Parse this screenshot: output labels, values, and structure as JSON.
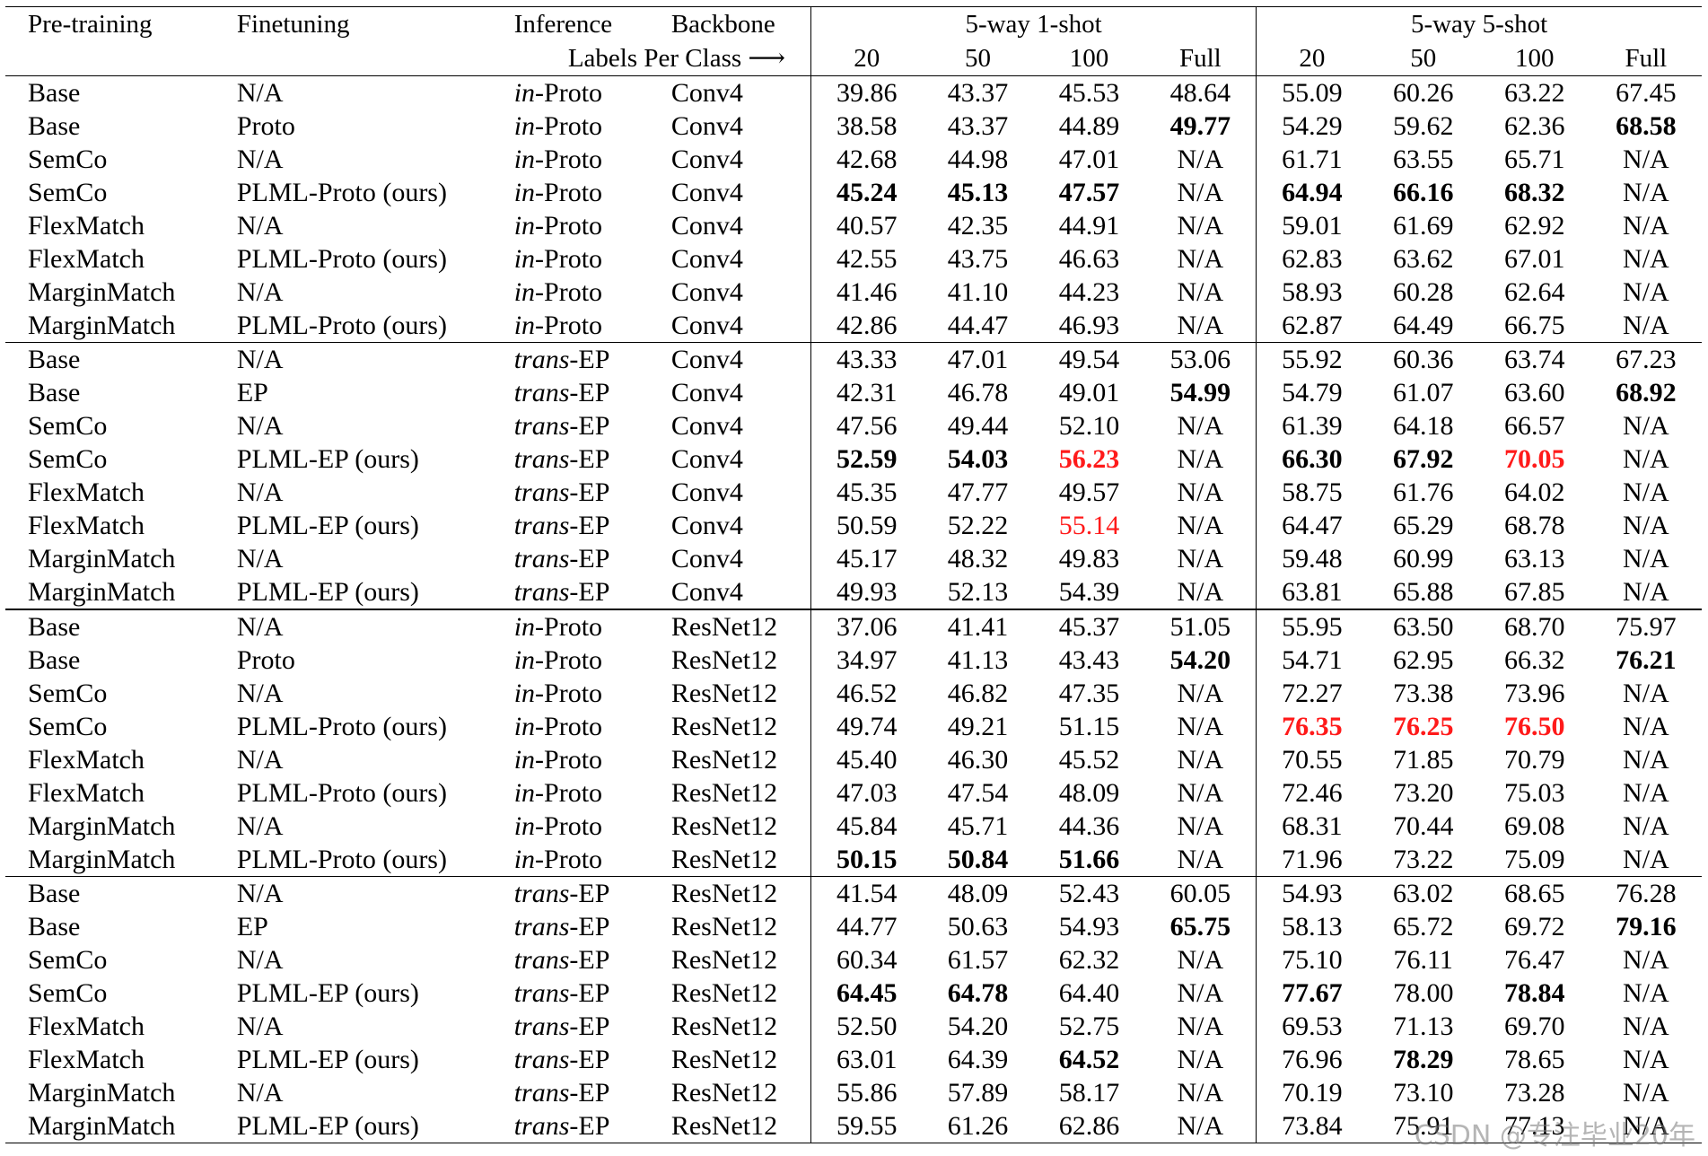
{
  "header": {
    "pretraining": "Pre-training",
    "finetuning": "Finetuning",
    "inference": "Inference",
    "backbone": "Backbone",
    "group_1shot": "5-way 1-shot",
    "group_5shot": "5-way 5-shot",
    "labels_per_class": "Labels Per Class ⟶",
    "cols": [
      "20",
      "50",
      "100",
      "Full"
    ]
  },
  "rows": [
    {
      "pre": "Base",
      "fine": "N/A",
      "inf_pre": "in",
      "inf_suf": "-Proto",
      "bb": "Conv4",
      "v": [
        "39.86",
        "43.37",
        "45.53",
        "48.64",
        "55.09",
        "60.26",
        "63.22",
        "67.45"
      ]
    },
    {
      "pre": "Base",
      "fine": "Proto",
      "inf_pre": "in",
      "inf_suf": "-Proto",
      "bb": "Conv4",
      "v": [
        "38.58",
        "43.37",
        "44.89",
        "49.77",
        "54.29",
        "59.62",
        "62.36",
        "68.58"
      ]
    },
    {
      "pre": "SemCo",
      "fine": "N/A",
      "inf_pre": "in",
      "inf_suf": "-Proto",
      "bb": "Conv4",
      "v": [
        "42.68",
        "44.98",
        "47.01",
        "N/A",
        "61.71",
        "63.55",
        "65.71",
        "N/A"
      ]
    },
    {
      "pre": "SemCo",
      "fine": "PLML-Proto (ours)",
      "inf_pre": "in",
      "inf_suf": "-Proto",
      "bb": "Conv4",
      "v": [
        "45.24",
        "45.13",
        "47.57",
        "N/A",
        "64.94",
        "66.16",
        "68.32",
        "N/A"
      ]
    },
    {
      "pre": "FlexMatch",
      "fine": "N/A",
      "inf_pre": "in",
      "inf_suf": "-Proto",
      "bb": "Conv4",
      "v": [
        "40.57",
        "42.35",
        "44.91",
        "N/A",
        "59.01",
        "61.69",
        "62.92",
        "N/A"
      ]
    },
    {
      "pre": "FlexMatch",
      "fine": "PLML-Proto (ours)",
      "inf_pre": "in",
      "inf_suf": "-Proto",
      "bb": "Conv4",
      "v": [
        "42.55",
        "43.75",
        "46.63",
        "N/A",
        "62.83",
        "63.62",
        "67.01",
        "N/A"
      ]
    },
    {
      "pre": "MarginMatch",
      "fine": "N/A",
      "inf_pre": "in",
      "inf_suf": "-Proto",
      "bb": "Conv4",
      "v": [
        "41.46",
        "41.10",
        "44.23",
        "N/A",
        "58.93",
        "60.28",
        "62.64",
        "N/A"
      ]
    },
    {
      "pre": "MarginMatch",
      "fine": "PLML-Proto (ours)",
      "inf_pre": "in",
      "inf_suf": "-Proto",
      "bb": "Conv4",
      "v": [
        "42.86",
        "44.47",
        "46.93",
        "N/A",
        "62.87",
        "64.49",
        "66.75",
        "N/A"
      ]
    },
    {
      "pre": "Base",
      "fine": "N/A",
      "inf_pre": "trans",
      "inf_suf": "-EP",
      "bb": "Conv4",
      "v": [
        "43.33",
        "47.01",
        "49.54",
        "53.06",
        "55.92",
        "60.36",
        "63.74",
        "67.23"
      ]
    },
    {
      "pre": "Base",
      "fine": "EP",
      "inf_pre": "trans",
      "inf_suf": "-EP",
      "bb": "Conv4",
      "v": [
        "42.31",
        "46.78",
        "49.01",
        "54.99",
        "54.79",
        "61.07",
        "63.60",
        "68.92"
      ]
    },
    {
      "pre": "SemCo",
      "fine": "N/A",
      "inf_pre": "trans",
      "inf_suf": "-EP",
      "bb": "Conv4",
      "v": [
        "47.56",
        "49.44",
        "52.10",
        "N/A",
        "61.39",
        "64.18",
        "66.57",
        "N/A"
      ]
    },
    {
      "pre": "SemCo",
      "fine": "PLML-EP (ours)",
      "inf_pre": "trans",
      "inf_suf": "-EP",
      "bb": "Conv4",
      "v": [
        "52.59",
        "54.03",
        "56.23",
        "N/A",
        "66.30",
        "67.92",
        "70.05",
        "N/A"
      ]
    },
    {
      "pre": "FlexMatch",
      "fine": "N/A",
      "inf_pre": "trans",
      "inf_suf": "-EP",
      "bb": "Conv4",
      "v": [
        "45.35",
        "47.77",
        "49.57",
        "N/A",
        "58.75",
        "61.76",
        "64.02",
        "N/A"
      ]
    },
    {
      "pre": "FlexMatch",
      "fine": "PLML-EP (ours)",
      "inf_pre": "trans",
      "inf_suf": "-EP",
      "bb": "Conv4",
      "v": [
        "50.59",
        "52.22",
        "55.14",
        "N/A",
        "64.47",
        "65.29",
        "68.78",
        "N/A"
      ]
    },
    {
      "pre": "MarginMatch",
      "fine": "N/A",
      "inf_pre": "trans",
      "inf_suf": "-EP",
      "bb": "Conv4",
      "v": [
        "45.17",
        "48.32",
        "49.83",
        "N/A",
        "59.48",
        "60.99",
        "63.13",
        "N/A"
      ]
    },
    {
      "pre": "MarginMatch",
      "fine": "PLML-EP (ours)",
      "inf_pre": "trans",
      "inf_suf": "-EP",
      "bb": "Conv4",
      "v": [
        "49.93",
        "52.13",
        "54.39",
        "N/A",
        "63.81",
        "65.88",
        "67.85",
        "N/A"
      ]
    },
    {
      "pre": "Base",
      "fine": "N/A",
      "inf_pre": "in",
      "inf_suf": "-Proto",
      "bb": "ResNet12",
      "v": [
        "37.06",
        "41.41",
        "45.37",
        "51.05",
        "55.95",
        "63.50",
        "68.70",
        "75.97"
      ]
    },
    {
      "pre": "Base",
      "fine": "Proto",
      "inf_pre": "in",
      "inf_suf": "-Proto",
      "bb": "ResNet12",
      "v": [
        "34.97",
        "41.13",
        "43.43",
        "54.20",
        "54.71",
        "62.95",
        "66.32",
        "76.21"
      ]
    },
    {
      "pre": "SemCo",
      "fine": "N/A",
      "inf_pre": "in",
      "inf_suf": "-Proto",
      "bb": "ResNet12",
      "v": [
        "46.52",
        "46.82",
        "47.35",
        "N/A",
        "72.27",
        "73.38",
        "73.96",
        "N/A"
      ]
    },
    {
      "pre": "SemCo",
      "fine": "PLML-Proto (ours)",
      "inf_pre": "in",
      "inf_suf": "-Proto",
      "bb": "ResNet12",
      "v": [
        "49.74",
        "49.21",
        "51.15",
        "N/A",
        "76.35",
        "76.25",
        "76.50",
        "N/A"
      ]
    },
    {
      "pre": "FlexMatch",
      "fine": "N/A",
      "inf_pre": "in",
      "inf_suf": "-Proto",
      "bb": "ResNet12",
      "v": [
        "45.40",
        "46.30",
        "45.52",
        "N/A",
        "70.55",
        "71.85",
        "70.79",
        "N/A"
      ]
    },
    {
      "pre": "FlexMatch",
      "fine": "PLML-Proto (ours)",
      "inf_pre": "in",
      "inf_suf": "-Proto",
      "bb": "ResNet12",
      "v": [
        "47.03",
        "47.54",
        "48.09",
        "N/A",
        "72.46",
        "73.20",
        "75.03",
        "N/A"
      ]
    },
    {
      "pre": "MarginMatch",
      "fine": "N/A",
      "inf_pre": "in",
      "inf_suf": "-Proto",
      "bb": "ResNet12",
      "v": [
        "45.84",
        "45.71",
        "44.36",
        "N/A",
        "68.31",
        "70.44",
        "69.08",
        "N/A"
      ]
    },
    {
      "pre": "MarginMatch",
      "fine": "PLML-Proto (ours)",
      "inf_pre": "in",
      "inf_suf": "-Proto",
      "bb": "ResNet12",
      "v": [
        "50.15",
        "50.84",
        "51.66",
        "N/A",
        "71.96",
        "73.22",
        "75.09",
        "N/A"
      ]
    },
    {
      "pre": "Base",
      "fine": "N/A",
      "inf_pre": "trans",
      "inf_suf": "-EP",
      "bb": "ResNet12",
      "v": [
        "41.54",
        "48.09",
        "52.43",
        "60.05",
        "54.93",
        "63.02",
        "68.65",
        "76.28"
      ]
    },
    {
      "pre": "Base",
      "fine": "EP",
      "inf_pre": "trans",
      "inf_suf": "-EP",
      "bb": "ResNet12",
      "v": [
        "44.77",
        "50.63",
        "54.93",
        "65.75",
        "58.13",
        "65.72",
        "69.72",
        "79.16"
      ]
    },
    {
      "pre": "SemCo",
      "fine": "N/A",
      "inf_pre": "trans",
      "inf_suf": "-EP",
      "bb": "ResNet12",
      "v": [
        "60.34",
        "61.57",
        "62.32",
        "N/A",
        "75.10",
        "76.11",
        "76.47",
        "N/A"
      ]
    },
    {
      "pre": "SemCo",
      "fine": "PLML-EP (ours)",
      "inf_pre": "trans",
      "inf_suf": "-EP",
      "bb": "ResNet12",
      "v": [
        "64.45",
        "64.78",
        "64.40",
        "N/A",
        "77.67",
        "78.00",
        "78.84",
        "N/A"
      ]
    },
    {
      "pre": "FlexMatch",
      "fine": "N/A",
      "inf_pre": "trans",
      "inf_suf": "-EP",
      "bb": "ResNet12",
      "v": [
        "52.50",
        "54.20",
        "52.75",
        "N/A",
        "69.53",
        "71.13",
        "69.70",
        "N/A"
      ]
    },
    {
      "pre": "FlexMatch",
      "fine": "PLML-EP (ours)",
      "inf_pre": "trans",
      "inf_suf": "-EP",
      "bb": "ResNet12",
      "v": [
        "63.01",
        "64.39",
        "64.52",
        "N/A",
        "76.96",
        "78.29",
        "78.65",
        "N/A"
      ]
    },
    {
      "pre": "MarginMatch",
      "fine": "N/A",
      "inf_pre": "trans",
      "inf_suf": "-EP",
      "bb": "ResNet12",
      "v": [
        "55.86",
        "57.89",
        "58.17",
        "N/A",
        "70.19",
        "73.10",
        "73.28",
        "N/A"
      ]
    },
    {
      "pre": "MarginMatch",
      "fine": "PLML-EP (ours)",
      "inf_pre": "trans",
      "inf_suf": "-EP",
      "bb": "ResNet12",
      "v": [
        "59.55",
        "61.26",
        "62.86",
        "N/A",
        "73.84",
        "75.91",
        "77.13",
        "N/A"
      ]
    }
  ],
  "bold_cells": [
    [
      1,
      3
    ],
    [
      1,
      7
    ],
    [
      3,
      0
    ],
    [
      3,
      1
    ],
    [
      3,
      2
    ],
    [
      3,
      4
    ],
    [
      3,
      5
    ],
    [
      3,
      6
    ],
    [
      9,
      3
    ],
    [
      9,
      7
    ],
    [
      11,
      0
    ],
    [
      11,
      1
    ],
    [
      11,
      4
    ],
    [
      11,
      5
    ],
    [
      17,
      3
    ],
    [
      17,
      7
    ],
    [
      23,
      0
    ],
    [
      23,
      1
    ],
    [
      23,
      2
    ],
    [
      25,
      3
    ],
    [
      25,
      7
    ],
    [
      27,
      0
    ],
    [
      27,
      1
    ],
    [
      27,
      4
    ],
    [
      27,
      6
    ],
    [
      29,
      2
    ],
    [
      29,
      5
    ]
  ],
  "red_bold_cells": [
    [
      11,
      2
    ],
    [
      11,
      6
    ],
    [
      19,
      4
    ],
    [
      19,
      5
    ],
    [
      19,
      6
    ]
  ],
  "red_cells": [
    [
      13,
      2
    ]
  ],
  "watermark": "CSDN @专注毕业20年"
}
